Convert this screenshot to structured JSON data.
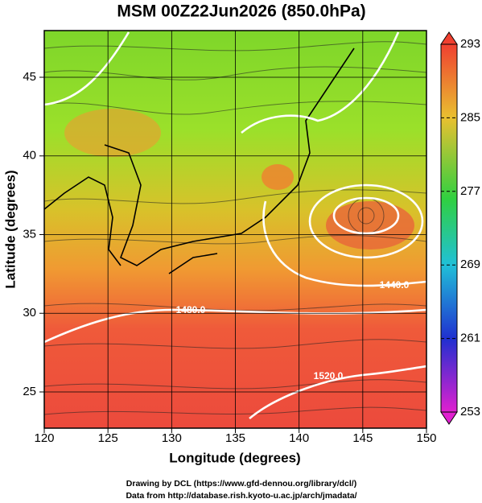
{
  "title": "MSM 00Z22Jun2026 (850.0hPa)",
  "x_axis": {
    "label": "Longitude (degrees)",
    "ticks": [
      120,
      125,
      130,
      135,
      140,
      145,
      150
    ]
  },
  "y_axis": {
    "label": "Latitude  (degrees)",
    "ticks": [
      25,
      30,
      35,
      40,
      45
    ]
  },
  "colorbar": {
    "ticks": [
      253,
      261,
      269,
      277,
      285,
      293
    ]
  },
  "contour_labels": [
    "1440.0",
    "1480.0",
    "1520.0"
  ],
  "credits": [
    "Drawing by DCL (https://www.gfd-dennou.org/library/dcl/)",
    "Data from http://database.rish.kyoto-u.ac.jp/arch/jmadata/"
  ]
}
